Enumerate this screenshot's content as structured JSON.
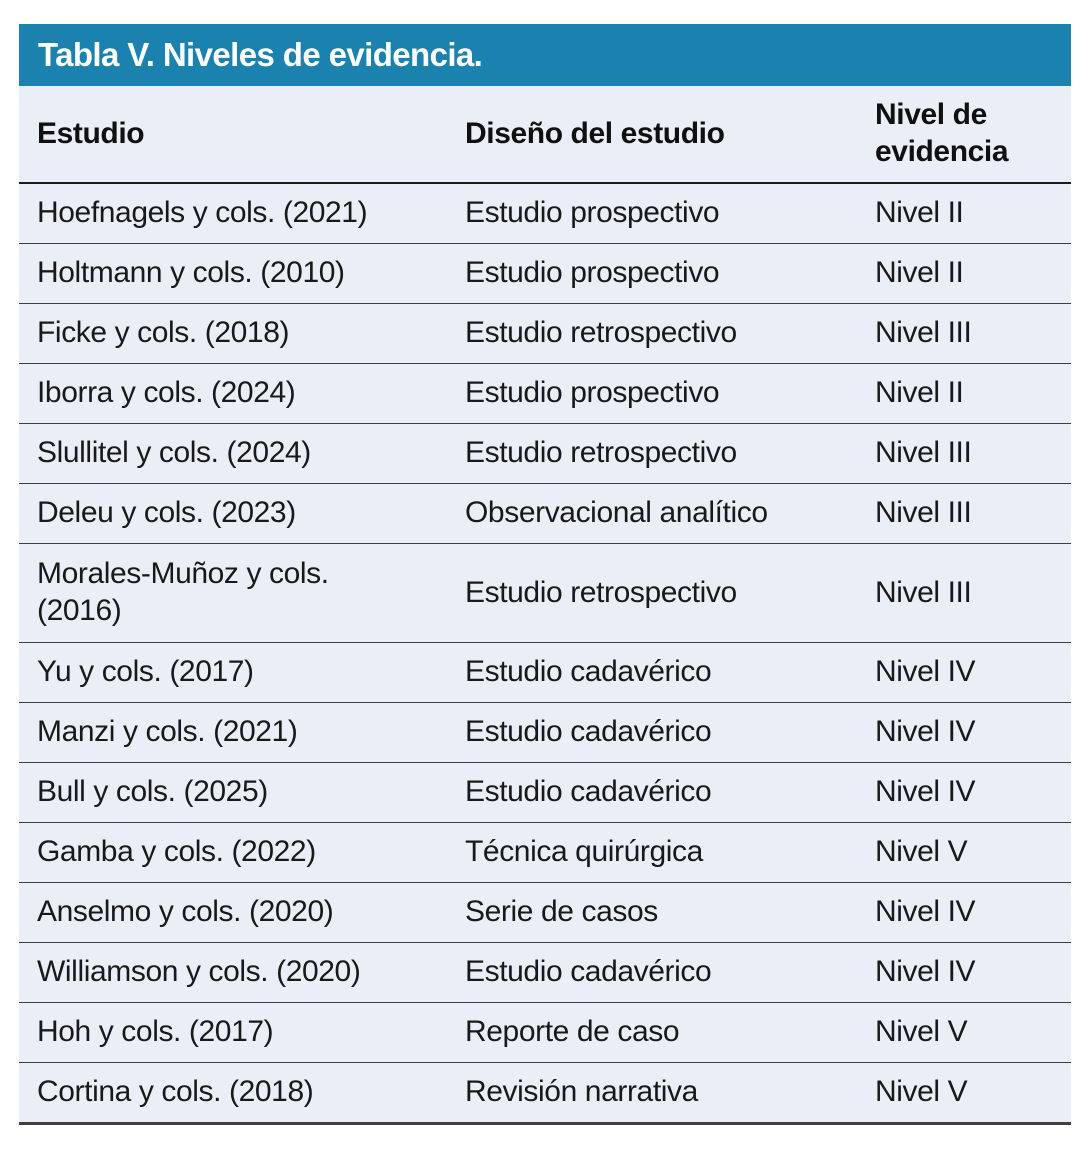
{
  "title": "Tabla V. Niveles de evidencia.",
  "colors": {
    "title_bar_background": "#1b81ae",
    "title_text": "#ffffff",
    "table_background": "#e9eef7",
    "body_text": "#191919",
    "row_separator": "#3f3f3f",
    "header_separator": "#1c1c1c"
  },
  "table": {
    "headers": {
      "estudio": "Estudio",
      "diseno": "Diseño del estudio",
      "nivel": "Nivel de evidencia"
    },
    "rows": [
      {
        "estudio": "Hoefnagels y cols. (2021)",
        "diseno": "Estudio prospectivo",
        "nivel": "Nivel II"
      },
      {
        "estudio": "Holtmann y cols. (2010)",
        "diseno": "Estudio prospectivo",
        "nivel": "Nivel II"
      },
      {
        "estudio": "Ficke y cols. (2018)",
        "diseno": "Estudio retrospectivo",
        "nivel": "Nivel III"
      },
      {
        "estudio": "Iborra y cols. (2024)",
        "diseno": "Estudio prospectivo",
        "nivel": "Nivel II"
      },
      {
        "estudio": "Slullitel y cols. (2024)",
        "diseno": "Estudio retrospectivo",
        "nivel": "Nivel III"
      },
      {
        "estudio": "Deleu y cols. (2023)",
        "diseno": "Observacional analítico",
        "nivel": "Nivel III"
      },
      {
        "estudio": "Morales-Muñoz y cols.\n(2016)",
        "diseno": "Estudio retrospectivo",
        "nivel": "Nivel III"
      },
      {
        "estudio": "Yu y cols. (2017)",
        "diseno": "Estudio cadavérico",
        "nivel": "Nivel IV"
      },
      {
        "estudio": "Manzi y cols. (2021)",
        "diseno": "Estudio cadavérico",
        "nivel": "Nivel IV"
      },
      {
        "estudio": "Bull y cols. (2025)",
        "diseno": "Estudio cadavérico",
        "nivel": "Nivel IV"
      },
      {
        "estudio": "Gamba y cols. (2022)",
        "diseno": "Técnica quirúrgica",
        "nivel": "Nivel V"
      },
      {
        "estudio": "Anselmo y cols. (2020)",
        "diseno": "Serie de casos",
        "nivel": "Nivel IV"
      },
      {
        "estudio": "Williamson y cols. (2020)",
        "diseno": "Estudio cadavérico",
        "nivel": "Nivel IV"
      },
      {
        "estudio": "Hoh y cols. (2017)",
        "diseno": "Reporte de caso",
        "nivel": "Nivel V"
      },
      {
        "estudio": "Cortina y cols. (2018)",
        "diseno": "Revisión narrativa",
        "nivel": "Nivel V"
      }
    ]
  },
  "chart_data": {
    "type": "table",
    "title": "Tabla V. Niveles de evidencia.",
    "columns": [
      "Estudio",
      "Diseño del estudio",
      "Nivel de evidencia"
    ],
    "rows": [
      [
        "Hoefnagels y cols. (2021)",
        "Estudio prospectivo",
        "Nivel II"
      ],
      [
        "Holtmann y cols. (2010)",
        "Estudio prospectivo",
        "Nivel II"
      ],
      [
        "Ficke y cols. (2018)",
        "Estudio retrospectivo",
        "Nivel III"
      ],
      [
        "Iborra y cols. (2024)",
        "Estudio prospectivo",
        "Nivel II"
      ],
      [
        "Slullitel y cols. (2024)",
        "Estudio retrospectivo",
        "Nivel III"
      ],
      [
        "Deleu y cols. (2023)",
        "Observacional analítico",
        "Nivel III"
      ],
      [
        "Morales-Muñoz y cols. (2016)",
        "Estudio retrospectivo",
        "Nivel III"
      ],
      [
        "Yu y cols. (2017)",
        "Estudio cadavérico",
        "Nivel IV"
      ],
      [
        "Manzi y cols. (2021)",
        "Estudio cadavérico",
        "Nivel IV"
      ],
      [
        "Bull y cols. (2025)",
        "Estudio cadavérico",
        "Nivel IV"
      ],
      [
        "Gamba y cols. (2022)",
        "Técnica quirúrgica",
        "Nivel V"
      ],
      [
        "Anselmo y cols. (2020)",
        "Serie de casos",
        "Nivel IV"
      ],
      [
        "Williamson y cols. (2020)",
        "Estudio cadavérico",
        "Nivel IV"
      ],
      [
        "Hoh y cols. (2017)",
        "Reporte de caso",
        "Nivel V"
      ],
      [
        "Cortina y cols. (2018)",
        "Revisión narrativa",
        "Nivel V"
      ]
    ]
  }
}
